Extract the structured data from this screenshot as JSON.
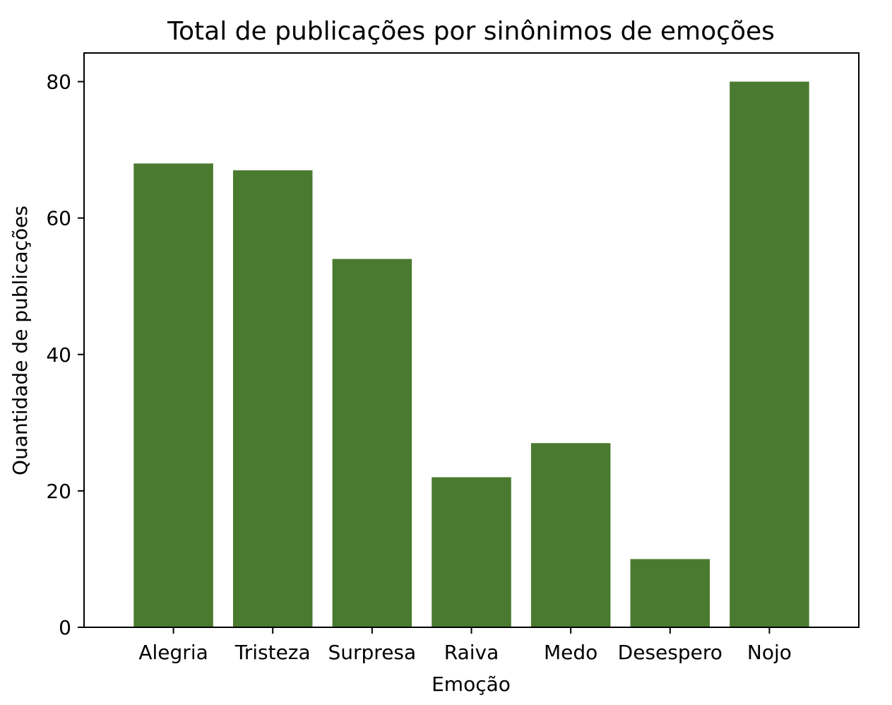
{
  "chart_data": {
    "type": "bar",
    "title": "Total de publicações por sinônimos de emoções",
    "xlabel": "Emoção",
    "ylabel": "Quantidade de publicações",
    "categories": [
      "Alegria",
      "Tristeza",
      "Surpresa",
      "Raiva",
      "Medo",
      "Desespero",
      "Nojo"
    ],
    "values": [
      68,
      67,
      54,
      22,
      27,
      10,
      80
    ],
    "ylim": [
      0,
      84.2
    ],
    "yticks": [
      0,
      20,
      40,
      60,
      80
    ],
    "bar_color": "#4a7a30",
    "grid": false,
    "legend": "none"
  }
}
